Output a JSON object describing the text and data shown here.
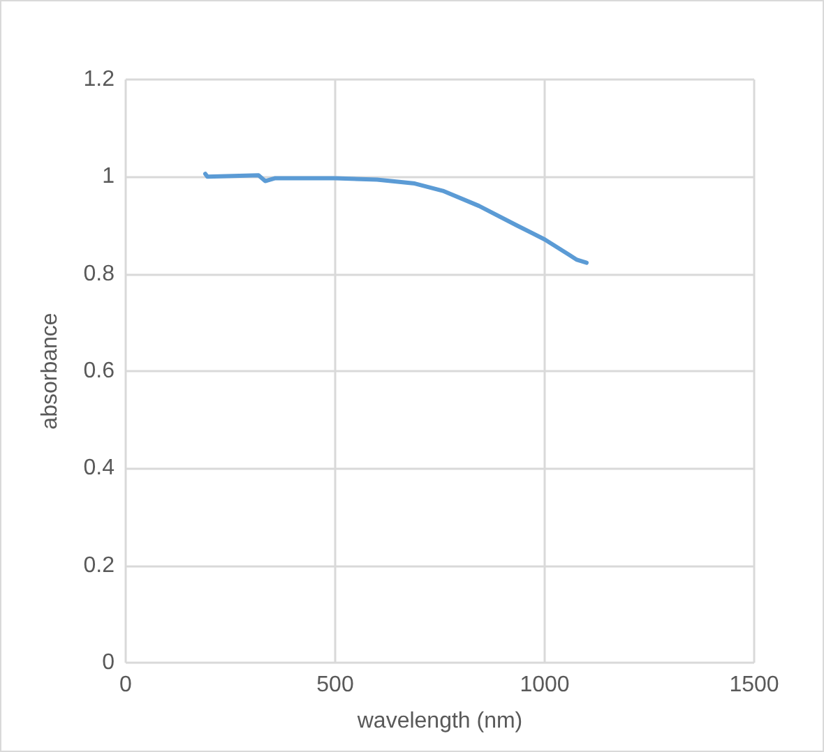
{
  "chart_data": {
    "type": "line",
    "xlabel": "wavelength (nm)",
    "ylabel": "absorbance",
    "series": [
      {
        "color": "#5b9bd5",
        "x": [
          190,
          195,
          317,
          333,
          357,
          500,
          600,
          690,
          757,
          843,
          933,
          1000,
          1057,
          1077,
          1100
        ],
        "values": [
          1.006,
          1.0,
          1.003,
          0.991,
          0.997,
          0.997,
          0.994,
          0.986,
          0.971,
          0.94,
          0.9,
          0.871,
          0.84,
          0.829,
          0.823
        ]
      }
    ],
    "xlim": [
      0,
      1500
    ],
    "xticks": [
      0,
      500,
      1000,
      1500
    ],
    "ylim": [
      0,
      1.2
    ],
    "yticks": [
      0,
      0.2,
      0.4,
      0.6,
      0.8,
      1,
      1.2
    ],
    "grid": true,
    "marker": "none",
    "line_style": "solid"
  }
}
